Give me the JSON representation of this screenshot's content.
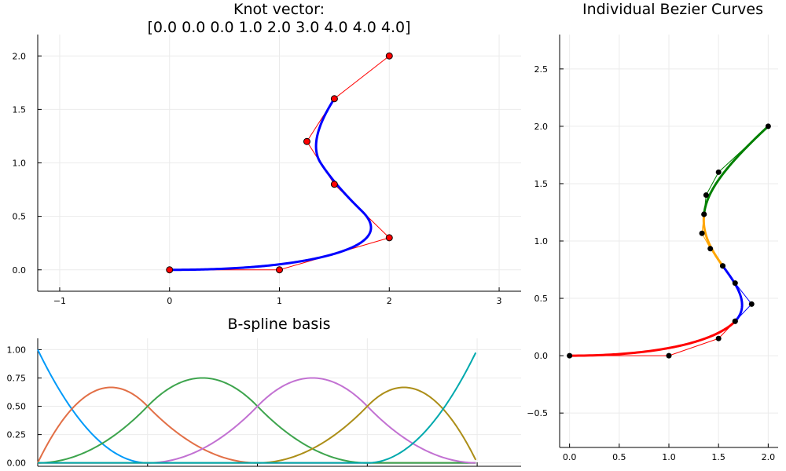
{
  "chart_data": [
    {
      "id": "bspline",
      "type": "line",
      "title_lines": [
        "Knot vector:",
        "[0.0 0.0 0.0 1.0 2.0 3.0 4.0 4.0 4.0]"
      ],
      "xlim": [
        -1.2,
        3.2
      ],
      "ylim": [
        -0.2,
        2.2
      ],
      "xticks": [
        -1,
        0,
        1,
        2,
        3
      ],
      "xtick_labels": [
        "−1",
        "0",
        "1",
        "2",
        "3"
      ],
      "yticks": [
        0,
        0.5,
        1,
        1.5,
        2
      ],
      "ytick_labels": [
        "0.0",
        "0.5",
        "1.0",
        "1.5",
        "2.0"
      ],
      "grid": true,
      "degree": 2,
      "knots": [
        0,
        0,
        0,
        1,
        2,
        3,
        4,
        4,
        4
      ],
      "control_points": [
        [
          0,
          0
        ],
        [
          1,
          0
        ],
        [
          2,
          0.3
        ],
        [
          1.5,
          0.8
        ],
        [
          1.25,
          1.2
        ],
        [
          1.5,
          1.6
        ],
        [
          2,
          2
        ]
      ],
      "curve_color": "#0000ff",
      "polygon_color": "#ff0000",
      "marker_color": "#ff0000"
    },
    {
      "id": "basis",
      "type": "line",
      "title": "B-spline basis",
      "xlim": [
        0,
        4.4
      ],
      "ylim": [
        -0.03,
        1.1
      ],
      "xticks": [
        0,
        1,
        2,
        3,
        4
      ],
      "yticks": [
        0,
        0.25,
        0.5,
        0.75,
        1
      ],
      "ytick_labels": [
        "0.00",
        "0.25",
        "0.50",
        "0.75",
        "1.00"
      ],
      "grid": true,
      "knots": [
        0,
        0,
        0,
        1,
        2,
        3,
        4,
        4,
        4
      ],
      "degree": 2,
      "colors": [
        "#009af9",
        "#e26f46",
        "#3da44d",
        "#c271d2",
        "#ac8e18",
        "#00a9ad",
        "#ed5e93"
      ]
    },
    {
      "id": "bezier",
      "type": "line",
      "title": "Individual Bezier Curves",
      "xlim": [
        -0.1,
        2.1
      ],
      "ylim": [
        -0.8,
        2.8
      ],
      "xticks": [
        0,
        0.5,
        1,
        1.5,
        2
      ],
      "xtick_labels": [
        "0.0",
        "0.5",
        "1.0",
        "1.5",
        "2.0"
      ],
      "yticks": [
        -0.5,
        0,
        0.5,
        1,
        1.5,
        2,
        2.5
      ],
      "ytick_labels": [
        "−0.5",
        "0.0",
        "0.5",
        "1.0",
        "1.5",
        "2.0",
        "2.5"
      ],
      "grid": true,
      "segments": [
        {
          "color": "#ff0000",
          "points": [
            [
              0,
              0
            ],
            [
              1,
              0
            ],
            [
              1.5,
              0.15
            ],
            [
              1.667,
              0.3
            ]
          ]
        },
        {
          "color": "#0000ff",
          "points": [
            [
              1.667,
              0.3
            ],
            [
              1.833,
              0.45
            ],
            [
              1.667,
              0.633
            ],
            [
              1.542,
              0.783
            ]
          ]
        },
        {
          "color": "#ffa500",
          "points": [
            [
              1.542,
              0.783
            ],
            [
              1.417,
              0.933
            ],
            [
              1.333,
              1.067
            ],
            [
              1.354,
              1.233
            ]
          ]
        },
        {
          "color": "#008000",
          "points": [
            [
              1.354,
              1.233
            ],
            [
              1.375,
              1.4
            ],
            [
              1.5,
              1.6
            ],
            [
              2,
              2
            ]
          ]
        }
      ],
      "marker_color": "#000000"
    }
  ]
}
